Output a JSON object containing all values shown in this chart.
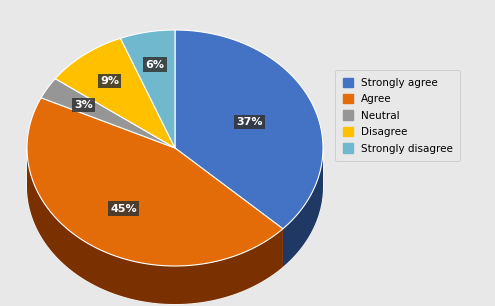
{
  "labels": [
    "Strongly agree",
    "Agree",
    "Neutral",
    "Disagree",
    "Strongly disagree"
  ],
  "values": [
    37,
    45,
    3,
    9,
    6
  ],
  "colors": [
    "#4472C4",
    "#E36C09",
    "#969696",
    "#FFC000",
    "#70B8CE"
  ],
  "dark_colors": [
    "#1F3864",
    "#7B3000",
    "#404040",
    "#7F6000",
    "#2E6080"
  ],
  "pct_labels": [
    "37%",
    "45%",
    "3%",
    "9%",
    "6%"
  ],
  "background_color": "#E8E8E8",
  "label_bg_color": "#333333",
  "label_text_color": "#FFFFFF"
}
